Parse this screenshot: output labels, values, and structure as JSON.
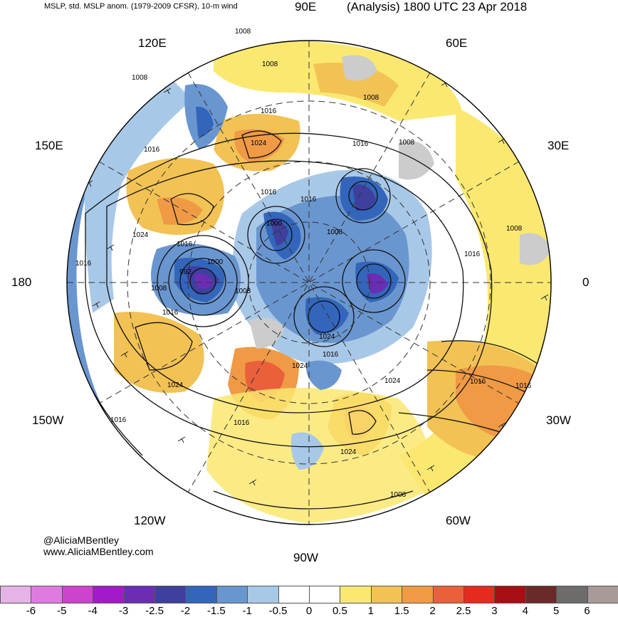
{
  "header": {
    "left_text": "MSLP, std. MSLP anom. (1979-2009 CFSR), 10-m wind",
    "right_text": "(Analysis) 1800 UTC 23 Apr 2018"
  },
  "longitude_labels": {
    "e90": "90E",
    "e60": "60E",
    "e120": "120E",
    "e150": "150E",
    "e30": "30E",
    "lon180": "180",
    "lon0": "0",
    "w150": "150W",
    "w30": "30W",
    "w120": "120W",
    "w60": "60W",
    "w90": "90W"
  },
  "credits": {
    "twitter": "@AliciaMBentley",
    "website": "www.AliciaMBentley.com"
  },
  "isobar_labels": [
    "1008",
    "1008",
    "1008",
    "1016",
    "1008",
    "1024",
    "1016",
    "1008",
    "1016",
    "1016",
    "1016",
    "1024",
    "1000",
    "1016",
    "1008",
    "1016",
    "992",
    "1000",
    "1008",
    "1008",
    "1016",
    "1008",
    "1016",
    "1024",
    "1024",
    "1016",
    "1024",
    "1024",
    "1016",
    "1016",
    "1024",
    "1016",
    "1016",
    "1008"
  ],
  "colorbar": {
    "labels": [
      "-6",
      "-5",
      "-4",
      "-3",
      "-2.5",
      "-2",
      "-1.5",
      "-1",
      "-0.5",
      "0",
      "0.5",
      "1",
      "1.5",
      "2",
      "2.5",
      "3",
      "4",
      "5",
      "6"
    ],
    "colors": [
      "#e6b3e6",
      "#e07ae0",
      "#cc44cc",
      "#a31bc9",
      "#6b2db3",
      "#3f3f9e",
      "#3366bb",
      "#6a96d0",
      "#a8c8e8",
      "#ffffff",
      "#ffffff",
      "#fbe870",
      "#f2c255",
      "#f09a45",
      "#e9603b",
      "#e52a1e",
      "#a50f15",
      "#6b2a2a",
      "#6e6b6b",
      "#a99a9a"
    ]
  }
}
